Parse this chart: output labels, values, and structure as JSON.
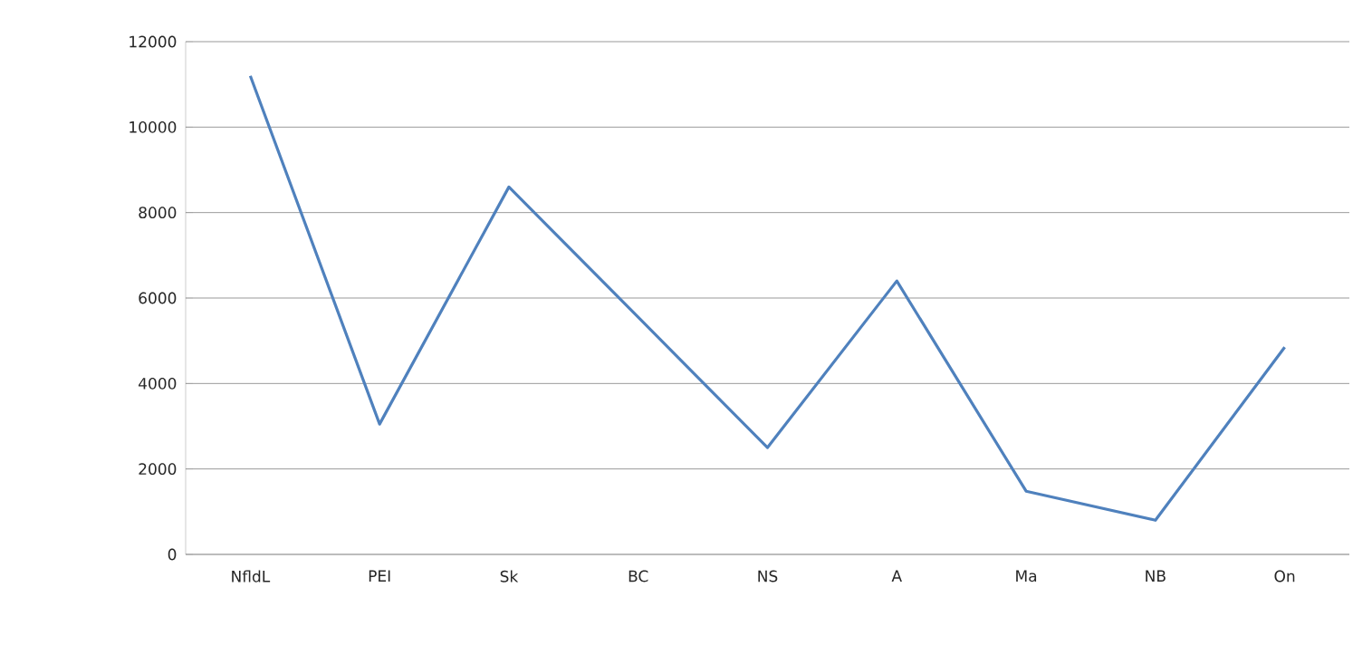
{
  "chart_data": {
    "type": "line",
    "categories": [
      "NfldL",
      "PEI",
      "Sk",
      "BC",
      "NS",
      "A",
      "Ma",
      "NB",
      "On"
    ],
    "series": [
      {
        "color": "#4f81bd",
        "values": [
          11200,
          3050,
          8600,
          5550,
          2500,
          6400,
          1480,
          800,
          4850
        ]
      }
    ],
    "ylim": [
      0,
      12000
    ],
    "yticks": [
      0,
      2000,
      4000,
      6000,
      8000,
      10000,
      12000
    ],
    "grid": "y",
    "marker": "none",
    "line_style": "solid"
  }
}
